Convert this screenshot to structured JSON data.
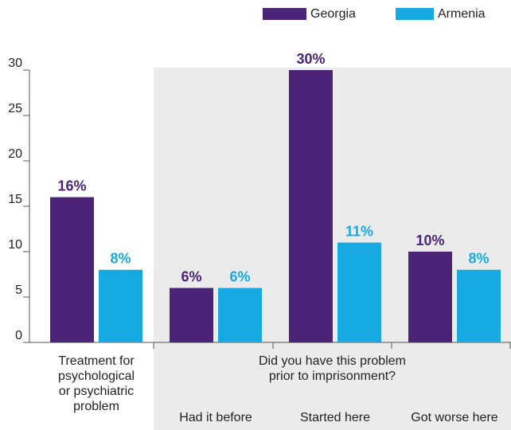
{
  "chart_data": {
    "type": "bar",
    "categories": [
      "Treatment for\npsychological\nor psychiatric\nproblem",
      "Had it before",
      "Started here",
      "Got worse here"
    ],
    "group_label": "Did you have this problem\nprior to imprisonment?",
    "series": [
      {
        "name": "Georgia",
        "color": "#4b2377",
        "values": [
          16,
          6,
          30,
          10
        ],
        "value_labels": [
          "16%",
          "6%",
          "30%",
          "10%"
        ]
      },
      {
        "name": "Armenia",
        "color": "#17a9e1",
        "values": [
          8,
          6,
          11,
          8
        ],
        "value_labels": [
          "8%",
          "6%",
          "11%",
          "8%"
        ]
      }
    ],
    "ylim": [
      0,
      30
    ],
    "yticks": [
      0,
      5,
      10,
      15,
      20,
      25,
      30
    ],
    "grid": false,
    "legend": "top-right"
  }
}
